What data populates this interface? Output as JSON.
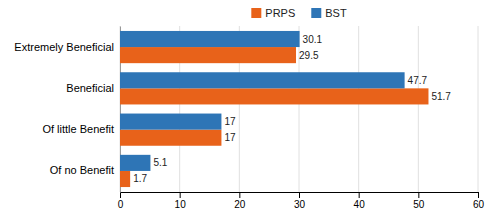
{
  "chart_data": {
    "type": "bar",
    "orientation": "horizontal",
    "categories": [
      "Extremely Beneficial",
      "Beneficial",
      "Of little Benefit",
      "Of no Benefit"
    ],
    "series": [
      {
        "name": "PRPS",
        "color": "#E8621A",
        "values": [
          29.5,
          51.7,
          17,
          1.7
        ]
      },
      {
        "name": "BST",
        "color": "#2E75B6",
        "values": [
          30.1,
          47.7,
          17,
          5.1
        ]
      }
    ],
    "xlim": [
      0,
      60
    ],
    "xticks": [
      0,
      10,
      20,
      30,
      40,
      50,
      60
    ],
    "grid": true,
    "data_labels": true,
    "legend": "top"
  }
}
